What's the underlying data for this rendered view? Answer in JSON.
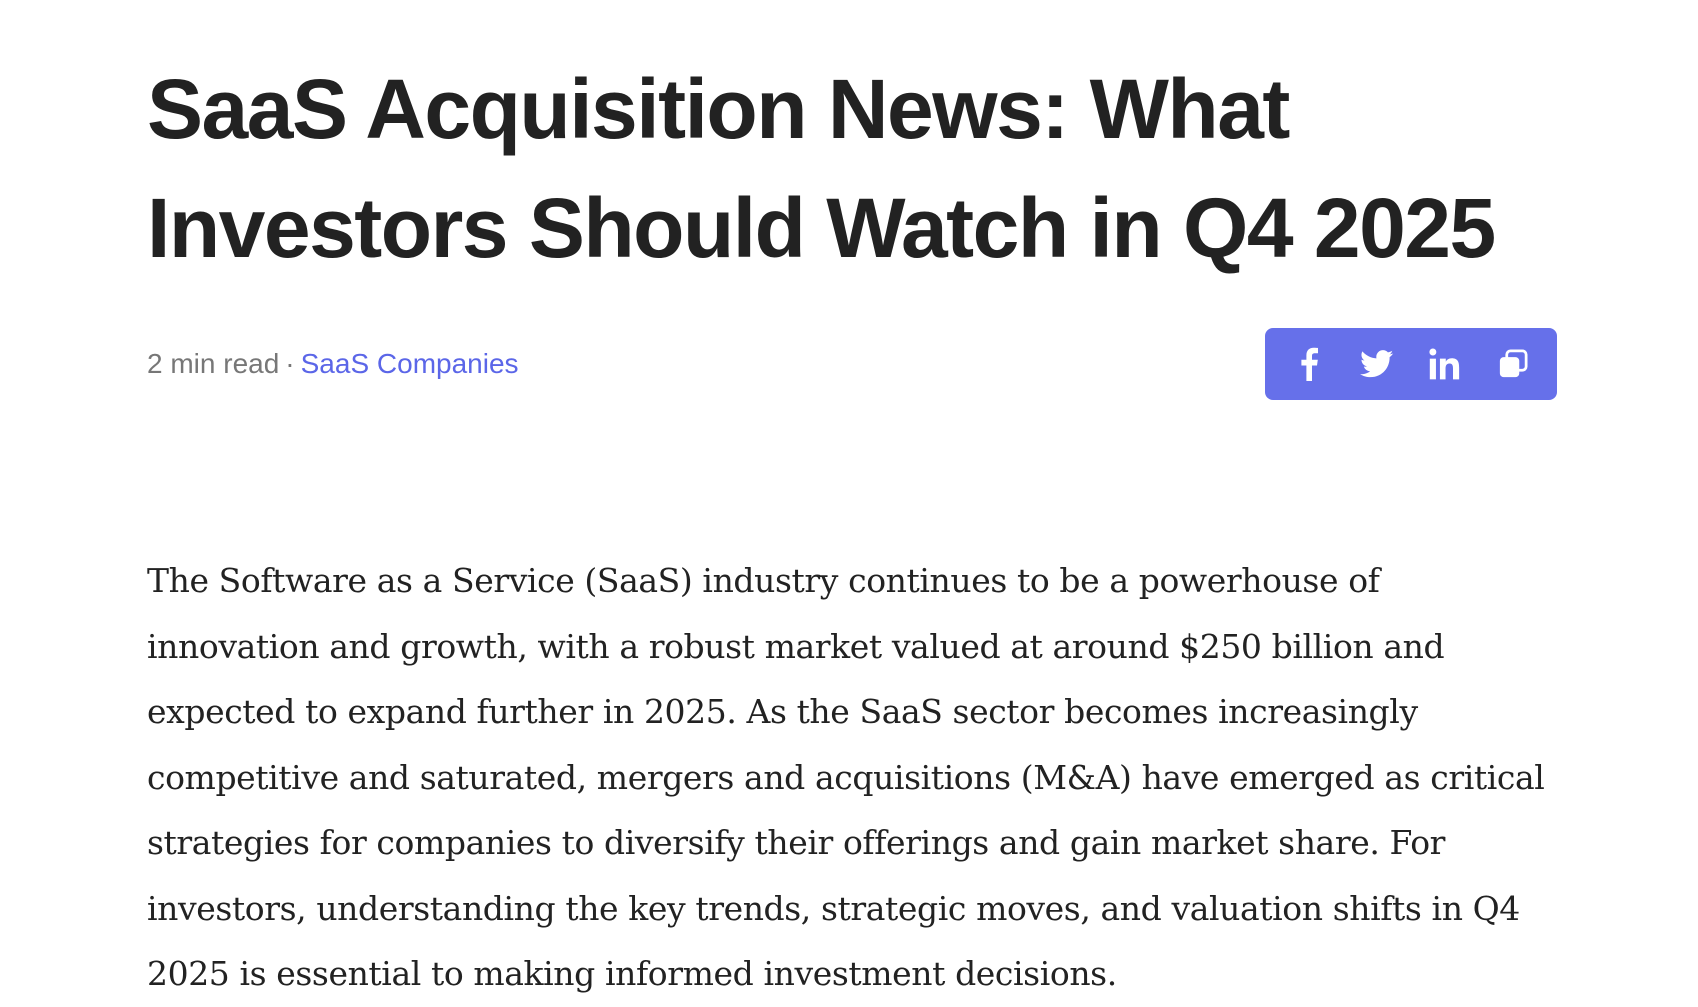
{
  "article": {
    "title": "SaaS Acquisition News: What Investors Should Watch in Q4 2025",
    "meta": {
      "read_time": "2 min read",
      "separator": "·",
      "category": "SaaS Companies"
    },
    "share": {
      "icons": [
        "facebook-icon",
        "twitter-icon",
        "linkedin-icon",
        "copy-link-icon"
      ],
      "accent_color": "#6670ea"
    },
    "paragraph": "The Software as a Service (SaaS) industry continues to be a powerhouse of innovation and growth, with a robust market valued at around $250 billion and expected to expand further in 2025. As the SaaS sector becomes increasingly competitive and saturated, mergers and acquisitions (M&A) have emerged as critical strategies for companies to diversify their offerings and gain market share. For investors, understanding the key trends, strategic moves, and valuation shifts in Q4 2025 is essential to making informed investment decisions."
  },
  "colors": {
    "text": "#222222",
    "meta": "#777777",
    "link": "#5b66e8"
  }
}
